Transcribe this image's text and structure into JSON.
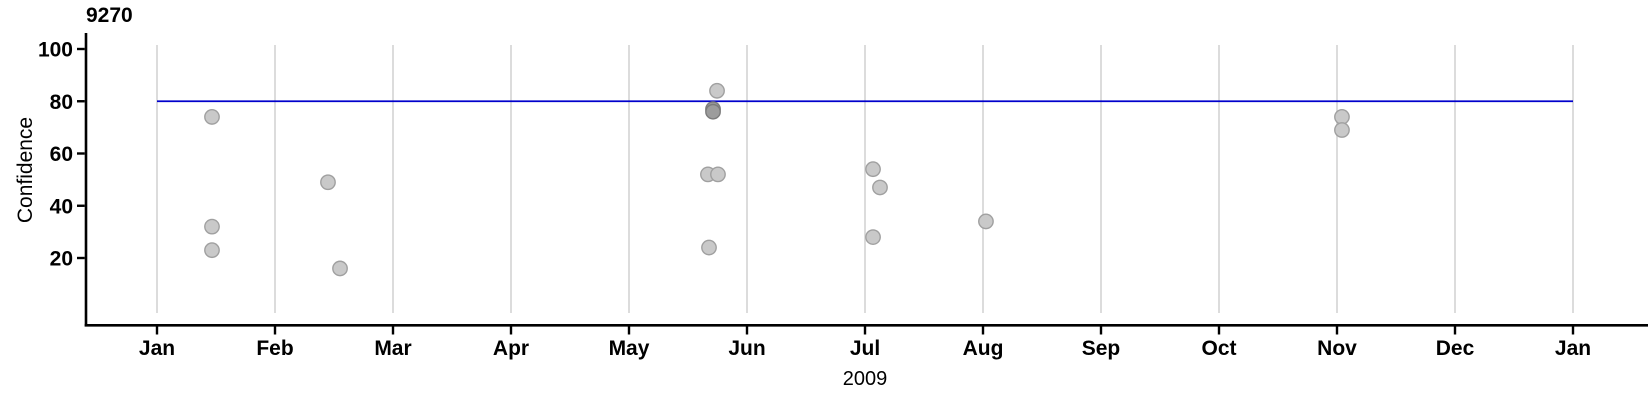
{
  "chart_data": {
    "type": "scatter",
    "title": "9270",
    "xlabel": "2009",
    "ylabel": "Confidence",
    "legend": "none",
    "grid": "vertical-monthly-only",
    "x_axis": {
      "unit": "month",
      "tick_labels": [
        "Jan",
        "Feb",
        "Mar",
        "Apr",
        "May",
        "Jun",
        "Jul",
        "Aug",
        "Sep",
        "Oct",
        "Nov",
        "Dec",
        "Jan"
      ],
      "year_label": "2009"
    },
    "y_axis": {
      "ticks": [
        20,
        40,
        60,
        80,
        100
      ],
      "ylim": [
        -1,
        102
      ]
    },
    "reference_line": {
      "y": 80,
      "color": "#0000CC",
      "extent": "Jan 2009 to Jan 2010"
    },
    "points": [
      {
        "approx_date": "2009-01-15",
        "month_frac": 0.466,
        "confidence": 74,
        "overlap": false
      },
      {
        "approx_date": "2009-01-15",
        "month_frac": 0.466,
        "confidence": 32,
        "overlap": false
      },
      {
        "approx_date": "2009-01-15",
        "month_frac": 0.466,
        "confidence": 23,
        "overlap": false
      },
      {
        "approx_date": "2009-02-14",
        "month_frac": 1.449,
        "confidence": 49,
        "overlap": false
      },
      {
        "approx_date": "2009-02-16",
        "month_frac": 1.551,
        "confidence": 16,
        "overlap": false
      },
      {
        "approx_date": "2009-05-24",
        "month_frac": 4.746,
        "confidence": 84,
        "overlap": false
      },
      {
        "approx_date": "2009-05-23",
        "month_frac": 4.712,
        "confidence": 77,
        "overlap": true
      },
      {
        "approx_date": "2009-05-23",
        "month_frac": 4.712,
        "confidence": 76,
        "overlap": true
      },
      {
        "approx_date": "2009-05-22",
        "month_frac": 4.669,
        "confidence": 52,
        "overlap": false
      },
      {
        "approx_date": "2009-05-24",
        "month_frac": 4.754,
        "confidence": 52,
        "overlap": false
      },
      {
        "approx_date": "2009-05-22",
        "month_frac": 4.678,
        "confidence": 24,
        "overlap": false
      },
      {
        "approx_date": "2009-07-03",
        "month_frac": 6.068,
        "confidence": 54,
        "overlap": false
      },
      {
        "approx_date": "2009-07-05",
        "month_frac": 6.127,
        "confidence": 47,
        "overlap": false
      },
      {
        "approx_date": "2009-07-03",
        "month_frac": 6.068,
        "confidence": 28,
        "overlap": false
      },
      {
        "approx_date": "2009-08-02",
        "month_frac": 7.025,
        "confidence": 34,
        "overlap": false
      },
      {
        "approx_date": "2009-11-02",
        "month_frac": 10.042,
        "confidence": 74,
        "overlap": false
      },
      {
        "approx_date": "2009-11-02",
        "month_frac": 10.042,
        "confidence": 69,
        "overlap": false
      }
    ],
    "colors": {
      "axis": "#000000",
      "grid": "#DCDCDC",
      "point_fill": "#C9C9C9",
      "point_stroke": "#A0A0A0",
      "point_fill_dark": "#9C9C9C",
      "point_stroke_dark": "#7B7B7B",
      "reference_line": "#0000CC",
      "text": "#000000"
    }
  }
}
